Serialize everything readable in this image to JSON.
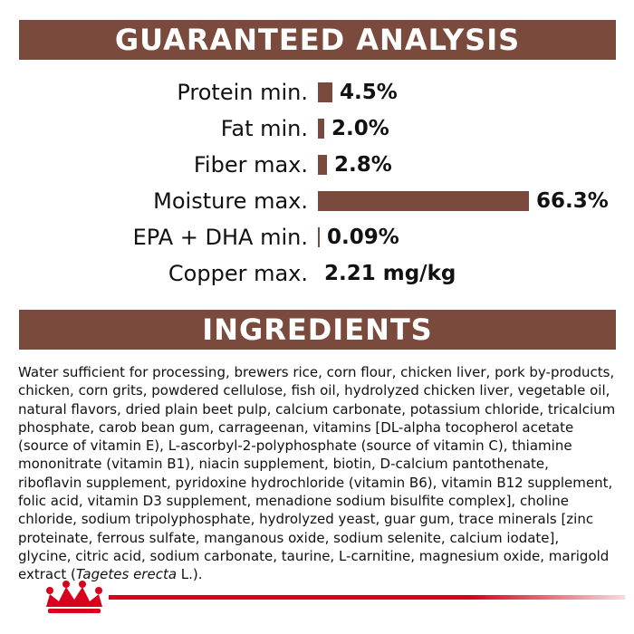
{
  "guaranteed_analysis": {
    "title": "GUARANTEED ANALYSIS",
    "rows": [
      {
        "label": "Protein min.",
        "value": "4.5%",
        "percent": 4.5
      },
      {
        "label": "Fat min.",
        "value": "2.0%",
        "percent": 2.0
      },
      {
        "label": "Fiber max.",
        "value": "2.8%",
        "percent": 2.8
      },
      {
        "label": "Moisture max.",
        "value": "66.3%",
        "percent": 66.3
      },
      {
        "label": "EPA + DHA min.",
        "value": "0.09%",
        "percent": 0.09
      },
      {
        "label": "Copper max.",
        "value": "2.21 mg/kg"
      }
    ]
  },
  "ingredients": {
    "title": "INGREDIENTS",
    "text_main": "Water sufficient for processing, brewers rice, corn flour, chicken liver, pork by-products, chicken, corn grits, powdered cellulose, fish oil, hydrolyzed chicken liver, vegetable oil, natural flavors, dried plain beet pulp, calcium carbonate, potassium chloride, tricalcium phosphate, carob bean gum, carrageenan, vitamins [DL-alpha tocopherol acetate (source of vitamin E), L-ascorbyl-2-polyphosphate (source of vitamin C), thiamine mononitrate (vitamin B1), niacin supplement, biotin, D-calcium pantothenate, riboflavin supplement, pyridoxine hydrochloride (vitamin B6), vitamin B12 supplement, folic acid, vitamin D3 supplement, menadione sodium bisulfite complex], choline chloride, sodium tripolyphosphate, hydrolyzed yeast, guar gum, trace minerals [zinc proteinate, ferrous sulfate, manganous oxide, sodium selenite, calcium iodate], glycine, citric acid, sodium carbonate, taurine, L-carnitine, magnesium oxide, marigold extract (",
    "text_italic": "Tagetes erecta",
    "text_end": " L.)."
  },
  "colors": {
    "banner": "#7a4a3c",
    "bar": "#7a4a3c",
    "brand_red": "#d8001c"
  },
  "footer": {
    "logo_icon": "royal-canin-crown-icon"
  }
}
